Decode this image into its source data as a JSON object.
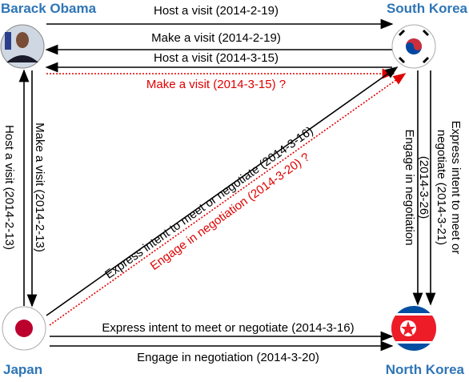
{
  "nodes": [
    {
      "label": "Barack Obama"
    },
    {
      "label": "South Korea"
    },
    {
      "label": "Japan"
    },
    {
      "label": "North Korea"
    }
  ],
  "edges": [
    {
      "label": "Host a visit (2014-2-19)"
    },
    {
      "label": "Make a visit (2014-2-19)"
    },
    {
      "label": "Host a visit (2014-3-15)"
    },
    {
      "label": "Make a visit (2014-3-15) ?"
    },
    {
      "label": "Host a visit (2014-2-13)"
    },
    {
      "label": "Make a visit (2014-2-13)"
    },
    {
      "label": "Express intent to meet or negotiate (2014-3-16)"
    },
    {
      "label": "Engage in negotiation (2014-3-20) ?"
    },
    {
      "label_lines": [
        "Engage in negotiation",
        "(2014-3-26)"
      ]
    },
    {
      "label_lines": [
        "Express intent to meet or",
        "negotiate (2014-3-21)"
      ]
    },
    {
      "label": "Express intent to meet or negotiate (2014-3-16)"
    },
    {
      "label": "Engage in negotiation (2014-3-20)"
    }
  ]
}
